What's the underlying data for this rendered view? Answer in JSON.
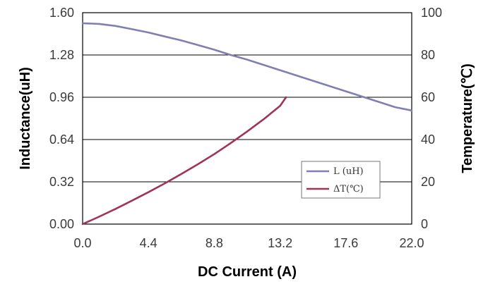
{
  "chart_data": {
    "type": "line",
    "xlabel": "DC Current (A)",
    "ylabel": "Inductance(uH)",
    "y2label": "Temperature(℃)",
    "xlim": [
      0,
      22
    ],
    "ylim": [
      0,
      1.6
    ],
    "y2lim": [
      0,
      100
    ],
    "x_ticks": [
      "0.0",
      "4.4",
      "8.8",
      "13.2",
      "17.6",
      "22.0"
    ],
    "y_ticks": [
      "0.00",
      "0.32",
      "0.64",
      "0.96",
      "1.28",
      "1.60"
    ],
    "y2_ticks": [
      "0",
      "20",
      "40",
      "60",
      "80",
      "100"
    ],
    "grid": "horizontal",
    "legend_position": "lower-right",
    "series": [
      {
        "name": "L (uH)",
        "axis": "left",
        "color": "#7f7fb3",
        "x": [
          0,
          1.1,
          2.2,
          3.3,
          4.4,
          5.5,
          6.6,
          7.7,
          8.8,
          9.9,
          11,
          12.1,
          13.2,
          14.3,
          15.4,
          16.5,
          17.6,
          18.7,
          19.8,
          20.9,
          22
        ],
        "y": [
          1.52,
          1.515,
          1.5,
          1.475,
          1.45,
          1.42,
          1.39,
          1.355,
          1.32,
          1.28,
          1.245,
          1.205,
          1.165,
          1.125,
          1.085,
          1.045,
          1.005,
          0.965,
          0.925,
          0.885,
          0.86
        ]
      },
      {
        "name": "ΔT(℃)",
        "axis": "right",
        "color": "#a0335a",
        "x": [
          0,
          1.1,
          2.2,
          3.3,
          4.4,
          5.5,
          6.6,
          7.7,
          8.8,
          9.9,
          11,
          12.1,
          13.2,
          13.6
        ],
        "y": [
          0,
          3.5,
          7.2,
          11.1,
          15.1,
          19.3,
          23.7,
          28.3,
          33.1,
          38.3,
          43.8,
          49.6,
          55.9,
          60
        ]
      }
    ]
  }
}
